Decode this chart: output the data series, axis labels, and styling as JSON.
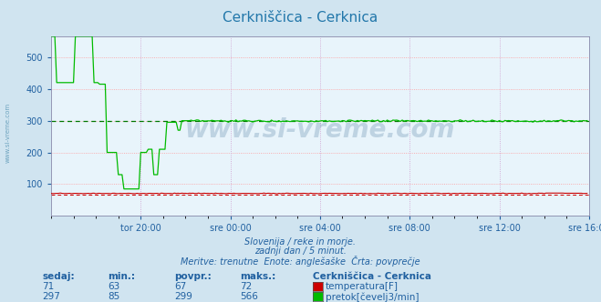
{
  "title": "Cerkniščica - Cerknica",
  "bg_color": "#d0e4f0",
  "plot_bg_color": "#e8f4fb",
  "grid_color_h": "#ff9999",
  "grid_color_v": "#cc99cc",
  "title_color": "#2277aa",
  "text_color": "#2060a0",
  "temp_color": "#cc0000",
  "flow_color": "#00bb00",
  "avg_flow_color": "#007700",
  "avg_temp_color": "#cc0000",
  "watermark_color": "#1a5080",
  "watermark_text": "www.si-vreme.com",
  "subtitle1": "Slovenija / reke in morje.",
  "subtitle2": "zadnji dan / 5 minut.",
  "subtitle3": "Meritve: trenutne  Enote: anglešaške  Črta: povprečje",
  "legend_title": "Cerkniščica - Cerknica",
  "legend_temp_label": "temperatura[F]",
  "legend_flow_label": "pretok[čevelj3/min]",
  "stats_headers": [
    "sedaj:",
    "min.:",
    "povpr.:",
    "maks.:"
  ],
  "stats_temp": [
    71,
    63,
    67,
    72
  ],
  "stats_flow": [
    297,
    85,
    299,
    566
  ],
  "n_points": 288,
  "temp_avg": 67,
  "flow_avg": 299,
  "temp_min": 63,
  "flow_min": 85,
  "temp_max": 72,
  "flow_max": 566,
  "ylim": [
    0,
    566
  ],
  "yticks": [
    100,
    200,
    300,
    400,
    500
  ],
  "xlabel_ticks": [
    "tor 20:00",
    "sre 00:00",
    "sre 04:00",
    "sre 08:00",
    "sre 12:00",
    "sre 16:00"
  ],
  "xlabel_tick_positions": [
    48,
    96,
    144,
    192,
    240,
    288
  ],
  "sidewatermark": "www.si-vreme.com"
}
